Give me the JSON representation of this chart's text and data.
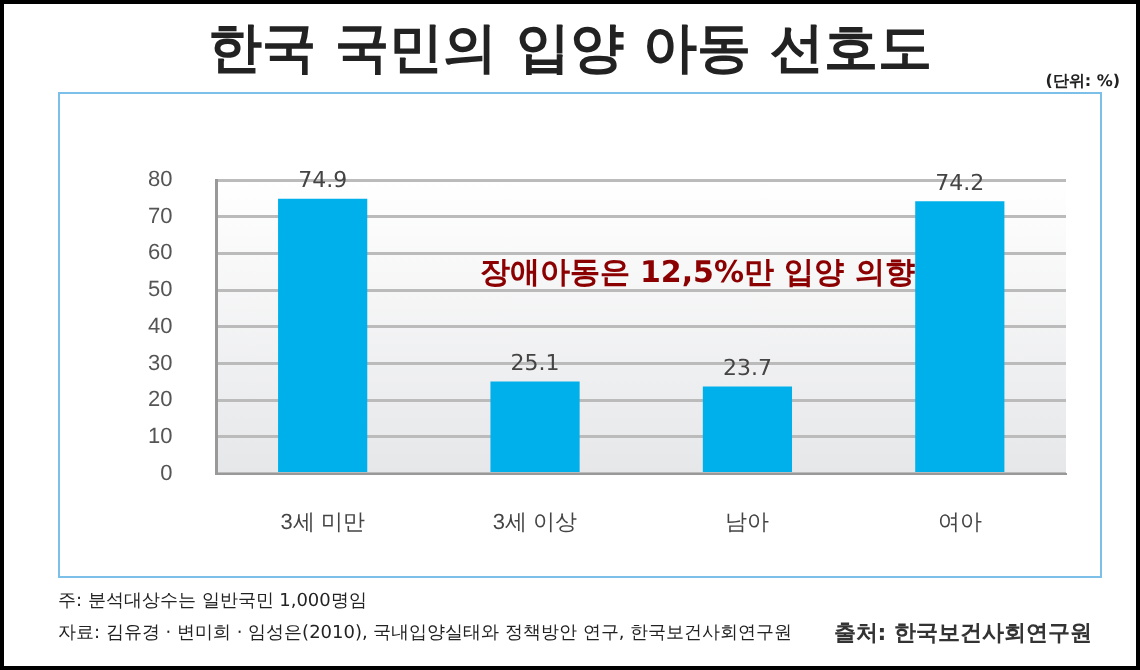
{
  "chart_data": {
    "type": "bar",
    "title": "한국 국민의 입양 아동 선호도",
    "categories": [
      "3세 미만",
      "3세 이상",
      "남아",
      "여아"
    ],
    "values": [
      74.9,
      25.1,
      23.7,
      74.2
    ],
    "color": "#00b0ea",
    "ylim": [
      0,
      80
    ],
    "yticks": [
      0,
      10,
      20,
      30,
      40,
      50,
      60,
      70,
      80
    ],
    "grid": "y",
    "data_labels": true,
    "legend": false,
    "annotations": [
      "(단위: %)",
      "장애아동은 12,5%만 입양 의향",
      "주: 분석대상수는 일반국민 1,000명임",
      "자료: 김유경 · 변미희 · 임성은(2010), 국내입양실태와 정책방안 연구, 한국보건사회연구원",
      "출처: 한국보건사회연구원"
    ]
  }
}
